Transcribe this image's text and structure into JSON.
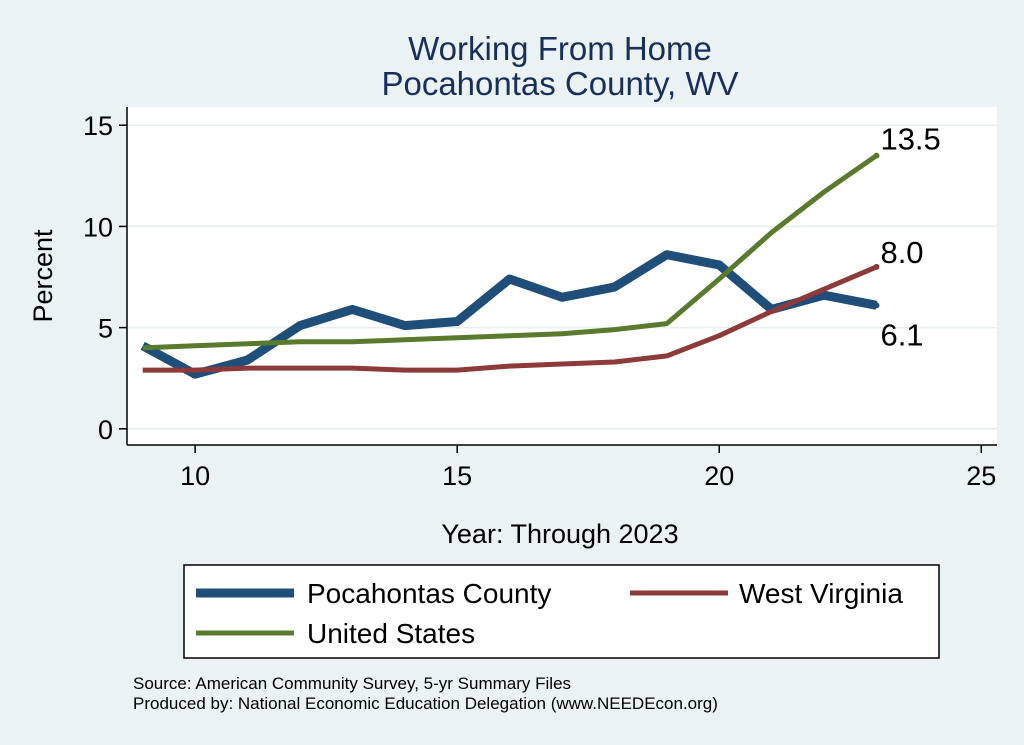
{
  "chart_data": {
    "type": "line",
    "title": [
      "Working From Home",
      "Pocahontas County, WV"
    ],
    "xlabel": "Year: Through 2023",
    "ylabel": "Percent",
    "xlim": [
      8.7,
      25.3
    ],
    "ylim": [
      -0.8,
      15.9
    ],
    "xticks": [
      10,
      15,
      20,
      25
    ],
    "yticks": [
      0,
      5,
      10,
      15
    ],
    "grid": true,
    "legend_position": "bottom",
    "series": [
      {
        "name": "Pocahontas County",
        "color": "#1f4e79",
        "width": 9,
        "x": [
          9,
          10,
          11,
          12,
          13,
          14,
          15,
          16,
          17,
          18,
          19,
          20,
          21,
          22,
          23
        ],
        "y": [
          4.1,
          2.7,
          3.4,
          5.1,
          5.9,
          5.1,
          5.3,
          7.4,
          6.5,
          7.0,
          8.6,
          8.1,
          5.9,
          6.6,
          6.1
        ],
        "end_label": "6.1"
      },
      {
        "name": "West Virginia",
        "color": "#8c3a3a",
        "width": 5,
        "x": [
          9,
          10,
          11,
          12,
          13,
          14,
          15,
          16,
          17,
          18,
          19,
          20,
          21,
          22,
          23
        ],
        "y": [
          2.9,
          2.9,
          3.0,
          3.0,
          3.0,
          2.9,
          2.9,
          3.1,
          3.2,
          3.3,
          3.6,
          4.6,
          5.8,
          6.9,
          8.0
        ],
        "end_label": "8.0"
      },
      {
        "name": "United States",
        "color": "#5a7a2e",
        "width": 5,
        "x": [
          9,
          10,
          11,
          12,
          13,
          14,
          15,
          16,
          17,
          18,
          19,
          20,
          21,
          22,
          23
        ],
        "y": [
          4.0,
          4.1,
          4.2,
          4.3,
          4.3,
          4.4,
          4.5,
          4.6,
          4.7,
          4.9,
          5.2,
          7.4,
          9.7,
          11.7,
          13.5
        ],
        "end_label": "13.5"
      }
    ],
    "legend_order": [
      0,
      1,
      2
    ],
    "source_lines": [
      "Source: American Community Survey, 5-yr Summary Files",
      "Produced by: National Economic Education Delegation (www.NEEDEcon.org)"
    ]
  }
}
